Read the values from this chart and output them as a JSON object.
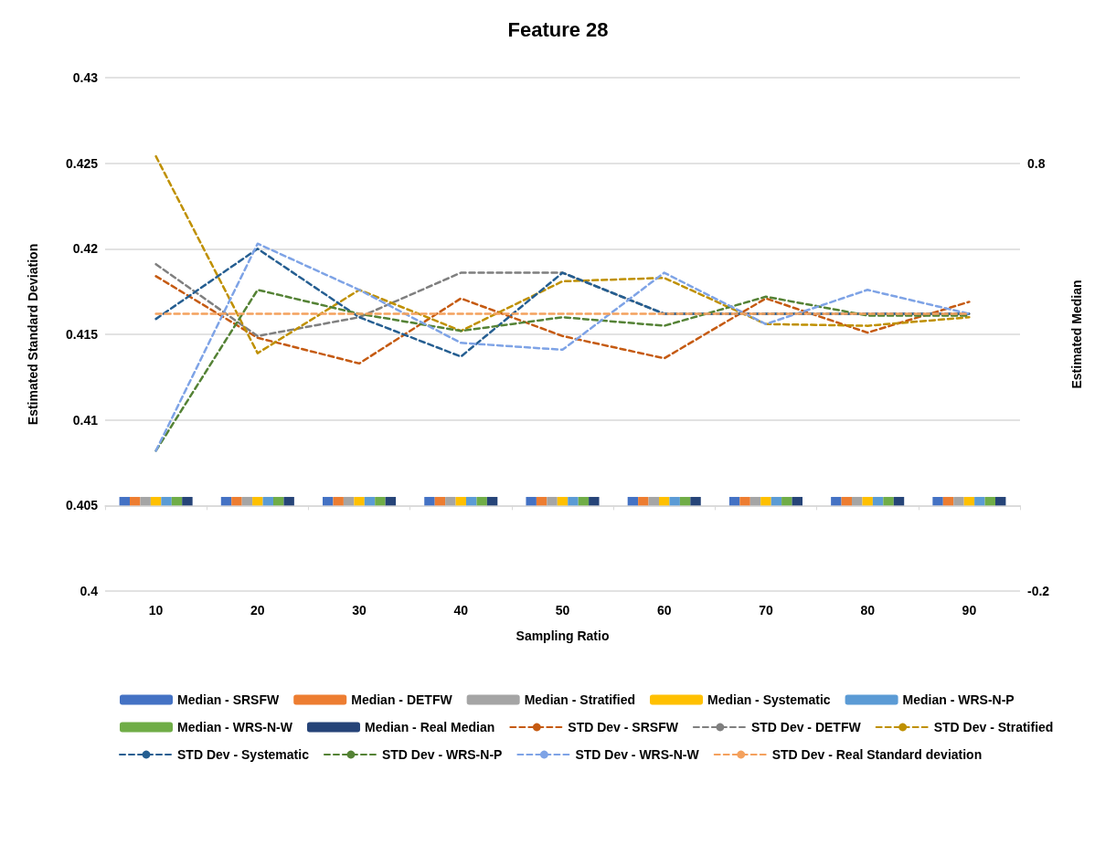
{
  "chart_data": {
    "type": "line",
    "title": "Feature 28",
    "xlabel": "Sampling Ratio",
    "ylabel": "Estimated Standard Deviation",
    "y2label": "Estimated Median",
    "categories": [
      "10",
      "20",
      "30",
      "40",
      "50",
      "60",
      "70",
      "80",
      "90"
    ],
    "ylim": [
      0.4,
      0.43
    ],
    "yticks": [
      0.4,
      0.405,
      0.41,
      0.415,
      0.42,
      0.425,
      0.43
    ],
    "y2lim": [
      -0.2,
      1.0
    ],
    "y2ticks": [
      -0.2,
      0.8
    ],
    "grid": "y",
    "legend": "bottom",
    "series": [
      {
        "name": "Median - SRSFW",
        "type": "bar",
        "axis": "y2",
        "color": "#4472c4",
        "values": [
          0.02,
          0.02,
          0.02,
          0.02,
          0.02,
          0.02,
          0.02,
          0.02,
          0.02
        ]
      },
      {
        "name": "Median - DETFW",
        "type": "bar",
        "axis": "y2",
        "color": "#ed7d31",
        "values": [
          0.02,
          0.02,
          0.02,
          0.02,
          0.02,
          0.02,
          0.02,
          0.02,
          0.02
        ]
      },
      {
        "name": "Median - Stratified",
        "type": "bar",
        "axis": "y2",
        "color": "#a5a5a5",
        "values": [
          0.02,
          0.02,
          0.02,
          0.02,
          0.02,
          0.02,
          0.02,
          0.02,
          0.02
        ]
      },
      {
        "name": "Median - Systematic",
        "type": "bar",
        "axis": "y2",
        "color": "#ffc000",
        "values": [
          0.02,
          0.02,
          0.02,
          0.02,
          0.02,
          0.02,
          0.02,
          0.02,
          0.02
        ]
      },
      {
        "name": "Median - WRS-N-P",
        "type": "bar",
        "axis": "y2",
        "color": "#5b9bd5",
        "values": [
          0.02,
          0.02,
          0.02,
          0.02,
          0.02,
          0.02,
          0.02,
          0.02,
          0.02
        ]
      },
      {
        "name": "Median - WRS-N-W",
        "type": "bar",
        "axis": "y2",
        "color": "#70ad47",
        "values": [
          0.02,
          0.02,
          0.02,
          0.02,
          0.02,
          0.02,
          0.02,
          0.02,
          0.02
        ]
      },
      {
        "name": "Median - Real Median",
        "type": "bar",
        "axis": "y2",
        "color": "#264478",
        "values": [
          0.02,
          0.02,
          0.02,
          0.02,
          0.02,
          0.02,
          0.02,
          0.02,
          0.02
        ]
      },
      {
        "name": "STD Dev - SRSFW",
        "line_style": "dashed",
        "color": "#c55a11",
        "values": [
          0.4184,
          0.4148,
          0.4133,
          0.4171,
          0.4149,
          0.4136,
          0.4171,
          0.4151,
          0.4169
        ]
      },
      {
        "name": "STD Dev - DETFW",
        "line_style": "dashed",
        "color": "#7f7f7f",
        "values": [
          0.4191,
          0.4149,
          0.416,
          0.4186,
          0.4186,
          0.4162,
          0.4162,
          0.4162,
          0.4162
        ]
      },
      {
        "name": "STD Dev - Stratified",
        "line_style": "dashed",
        "color": "#bf9000",
        "values": [
          0.4254,
          0.4139,
          0.4176,
          0.4152,
          0.4181,
          0.4183,
          0.4156,
          0.4155,
          0.416
        ]
      },
      {
        "name": "STD Dev - Systematic",
        "line_style": "dashed",
        "color": "#255e91",
        "values": [
          0.4159,
          0.42,
          0.416,
          0.4137,
          0.4186,
          0.4162,
          0.4162,
          0.4162,
          0.4162
        ]
      },
      {
        "name": "STD Dev - WRS-N-P",
        "line_style": "dashed",
        "color": "#548235",
        "values": [
          0.4082,
          0.4176,
          0.4162,
          0.4152,
          0.416,
          0.4155,
          0.4172,
          0.4161,
          0.4161
        ]
      },
      {
        "name": "STD Dev - WRS-N-W",
        "line_style": "dashed",
        "color": "#7ea3e6",
        "values": [
          0.4082,
          0.4203,
          0.4176,
          0.4145,
          0.4141,
          0.4186,
          0.4156,
          0.4176,
          0.4162
        ]
      },
      {
        "name": "STD Dev - Real Standard deviation",
        "line_style": "dashed",
        "color": "#f4a15d",
        "values": [
          0.4162,
          0.4162,
          0.4162,
          0.4162,
          0.4162,
          0.4162,
          0.4162,
          0.4162,
          0.4162
        ]
      }
    ]
  }
}
